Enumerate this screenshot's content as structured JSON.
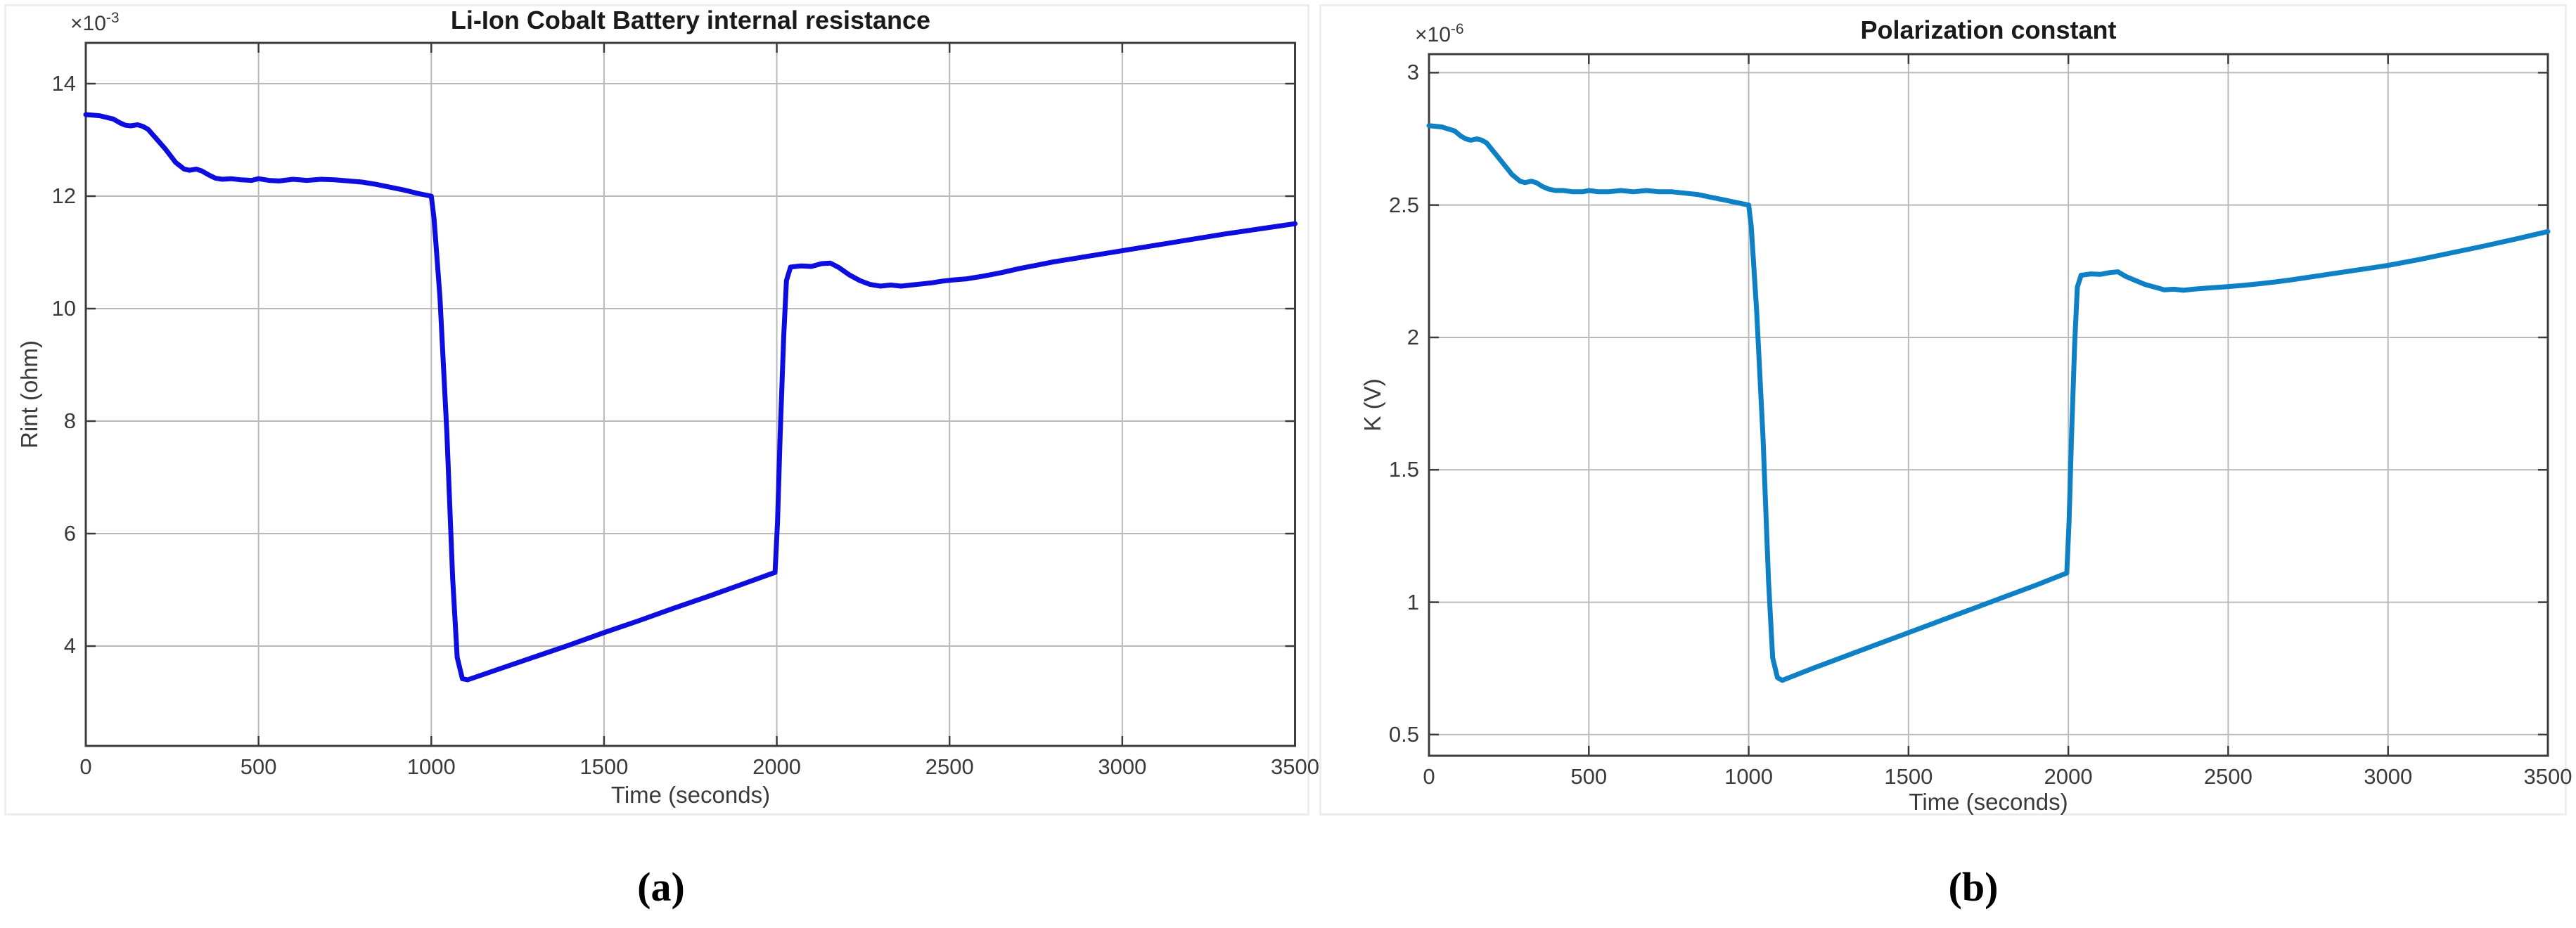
{
  "page": {
    "background": "#ffffff"
  },
  "figures": [
    {
      "caption": "(a)"
    },
    {
      "caption": "(b)"
    }
  ],
  "chart_data": [
    {
      "type": "line",
      "title": "Li-Ion Cobalt Battery internal resistance",
      "xlabel": "Time  (seconds)",
      "ylabel": "Rint (ohm)",
      "scale_label": {
        "base": "×10",
        "exp": "-3"
      },
      "y_scale_factor": "1e-3",
      "xlim": [
        0,
        3500
      ],
      "ylim": [
        2.225,
        14.725
      ],
      "x_ticks": [
        0,
        500,
        1000,
        1500,
        2000,
        2500,
        3000,
        3500
      ],
      "x_tick_labels": [
        "0",
        "500",
        "1000",
        "1500",
        "2000",
        "2500",
        "3000",
        "3500"
      ],
      "y_ticks": [
        14,
        12,
        10,
        8,
        6,
        4
      ],
      "y_tick_labels": [
        "14",
        "12",
        "10",
        "8",
        "6",
        "4"
      ],
      "grid": true,
      "grid_color": "#b9b9b9",
      "line_color": "#0d0de0",
      "series": [
        {
          "name": "Rint",
          "x": [
            0,
            40,
            80,
            100,
            115,
            130,
            150,
            165,
            180,
            200,
            230,
            260,
            285,
            300,
            320,
            335,
            355,
            375,
            395,
            420,
            450,
            480,
            500,
            530,
            560,
            600,
            640,
            680,
            720,
            760,
            800,
            840,
            880,
            920,
            960,
            1000,
            1008,
            1025,
            1045,
            1062,
            1075,
            1090,
            1105,
            1200,
            1300,
            1400,
            1500,
            1600,
            1700,
            1800,
            1900,
            1995,
            2002,
            2010,
            2020,
            2028,
            2040,
            2070,
            2100,
            2130,
            2155,
            2180,
            2210,
            2240,
            2270,
            2300,
            2330,
            2360,
            2390,
            2420,
            2450,
            2480,
            2510,
            2550,
            2600,
            2650,
            2700,
            2750,
            2800,
            2850,
            2900,
            2950,
            3000,
            3100,
            3200,
            3300,
            3400,
            3500
          ],
          "y": [
            13.45,
            13.43,
            13.37,
            13.3,
            13.26,
            13.25,
            13.27,
            13.24,
            13.19,
            13.05,
            12.84,
            12.6,
            12.48,
            12.46,
            12.48,
            12.45,
            12.38,
            12.32,
            12.3,
            12.31,
            12.29,
            12.28,
            12.31,
            12.28,
            12.27,
            12.3,
            12.28,
            12.3,
            12.29,
            12.27,
            12.25,
            12.21,
            12.16,
            12.11,
            12.05,
            12.0,
            11.6,
            10.2,
            7.8,
            5.2,
            3.8,
            3.42,
            3.4,
            3.6,
            3.81,
            4.02,
            4.24,
            4.45,
            4.67,
            4.88,
            5.1,
            5.31,
            6.2,
            7.8,
            9.5,
            10.5,
            10.74,
            10.76,
            10.75,
            10.8,
            10.81,
            10.73,
            10.6,
            10.5,
            10.43,
            10.4,
            10.42,
            10.4,
            10.42,
            10.44,
            10.46,
            10.49,
            10.51,
            10.53,
            10.58,
            10.64,
            10.71,
            10.77,
            10.83,
            10.88,
            10.93,
            10.98,
            11.03,
            11.13,
            11.23,
            11.33,
            11.42,
            11.51
          ]
        }
      ]
    },
    {
      "type": "line",
      "title": "Polarization constant",
      "xlabel": "Time (seconds)",
      "ylabel": "K (V)",
      "scale_label": {
        "base": "×10",
        "exp": "-6"
      },
      "y_scale_factor": "1e-6",
      "xlim": [
        0,
        3500
      ],
      "ylim": [
        0.42,
        3.07
      ],
      "x_ticks": [
        0,
        500,
        1000,
        1500,
        2000,
        2500,
        3000,
        3500
      ],
      "x_tick_labels": [
        "0",
        "500",
        "1000",
        "1500",
        "2000",
        "2500",
        "3000",
        "3500"
      ],
      "y_ticks": [
        3,
        2.5,
        2,
        1.5,
        1,
        0.5
      ],
      "y_tick_labels": [
        "3",
        "2.5",
        "2",
        "1.5",
        "1",
        "0.5"
      ],
      "grid": true,
      "grid_color": "#b9b9b9",
      "line_color": "#0e80c6",
      "series": [
        {
          "name": "K",
          "x": [
            0,
            40,
            80,
            100,
            115,
            130,
            150,
            165,
            180,
            200,
            230,
            260,
            285,
            300,
            320,
            335,
            355,
            375,
            395,
            420,
            450,
            480,
            500,
            530,
            560,
            600,
            640,
            680,
            720,
            760,
            800,
            840,
            880,
            920,
            960,
            1000,
            1008,
            1025,
            1045,
            1062,
            1075,
            1090,
            1105,
            1200,
            1300,
            1400,
            1500,
            1600,
            1700,
            1800,
            1900,
            1995,
            2002,
            2010,
            2020,
            2028,
            2040,
            2070,
            2100,
            2130,
            2155,
            2180,
            2210,
            2240,
            2270,
            2300,
            2330,
            2360,
            2390,
            2420,
            2450,
            2480,
            2510,
            2550,
            2600,
            2650,
            2700,
            2750,
            2800,
            2850,
            2900,
            2950,
            3000,
            3100,
            3200,
            3300,
            3400,
            3500
          ],
          "y": [
            2.8,
            2.795,
            2.78,
            2.76,
            2.75,
            2.745,
            2.75,
            2.745,
            2.735,
            2.705,
            2.66,
            2.615,
            2.59,
            2.585,
            2.59,
            2.585,
            2.57,
            2.56,
            2.555,
            2.555,
            2.55,
            2.55,
            2.555,
            2.55,
            2.55,
            2.555,
            2.55,
            2.555,
            2.55,
            2.55,
            2.545,
            2.54,
            2.53,
            2.52,
            2.51,
            2.5,
            2.42,
            2.1,
            1.62,
            1.08,
            0.79,
            0.715,
            0.705,
            0.75,
            0.795,
            0.84,
            0.885,
            0.93,
            0.975,
            1.02,
            1.065,
            1.11,
            1.3,
            1.63,
            1.98,
            2.19,
            2.235,
            2.24,
            2.238,
            2.245,
            2.248,
            2.23,
            2.215,
            2.2,
            2.19,
            2.18,
            2.182,
            2.178,
            2.182,
            2.185,
            2.188,
            2.19,
            2.193,
            2.197,
            2.203,
            2.21,
            2.218,
            2.227,
            2.236,
            2.245,
            2.254,
            2.263,
            2.272,
            2.295,
            2.32,
            2.345,
            2.372,
            2.4
          ]
        }
      ]
    }
  ]
}
